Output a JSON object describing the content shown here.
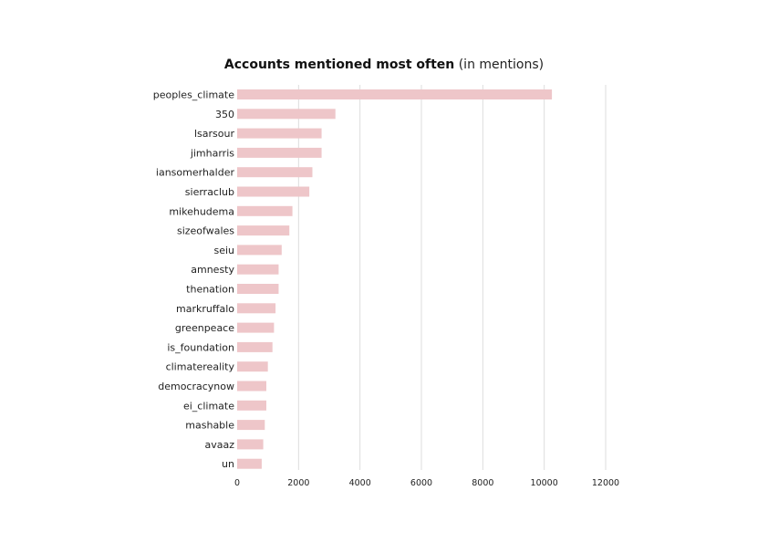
{
  "chart_data": {
    "type": "bar",
    "orientation": "horizontal",
    "title": "Accounts mentioned most often",
    "subtitle": "(in mentions)",
    "categories": [
      "peoples_climate",
      "350",
      "lsarsour",
      "jimharris",
      "iansomerhalder",
      "sierraclub",
      "mikehudema",
      "sizeofwales",
      "seiu",
      "amnesty",
      "thenation",
      "markruffalo",
      "greenpeace",
      "is_foundation",
      "climatereality",
      "democracynow",
      "ei_climate",
      "mashable",
      "avaaz",
      "un"
    ],
    "values": [
      10250,
      3200,
      2750,
      2750,
      2450,
      2350,
      1800,
      1700,
      1450,
      1350,
      1350,
      1250,
      1200,
      1150,
      1000,
      950,
      950,
      900,
      850,
      800
    ],
    "xlim": [
      0,
      12000
    ],
    "x_ticks": [
      "0",
      "2000",
      "4000",
      "6000",
      "8000",
      "10000",
      "12000"
    ],
    "grid": true,
    "bar_color": "#eec6c9",
    "grid_color": "#dddddd"
  }
}
